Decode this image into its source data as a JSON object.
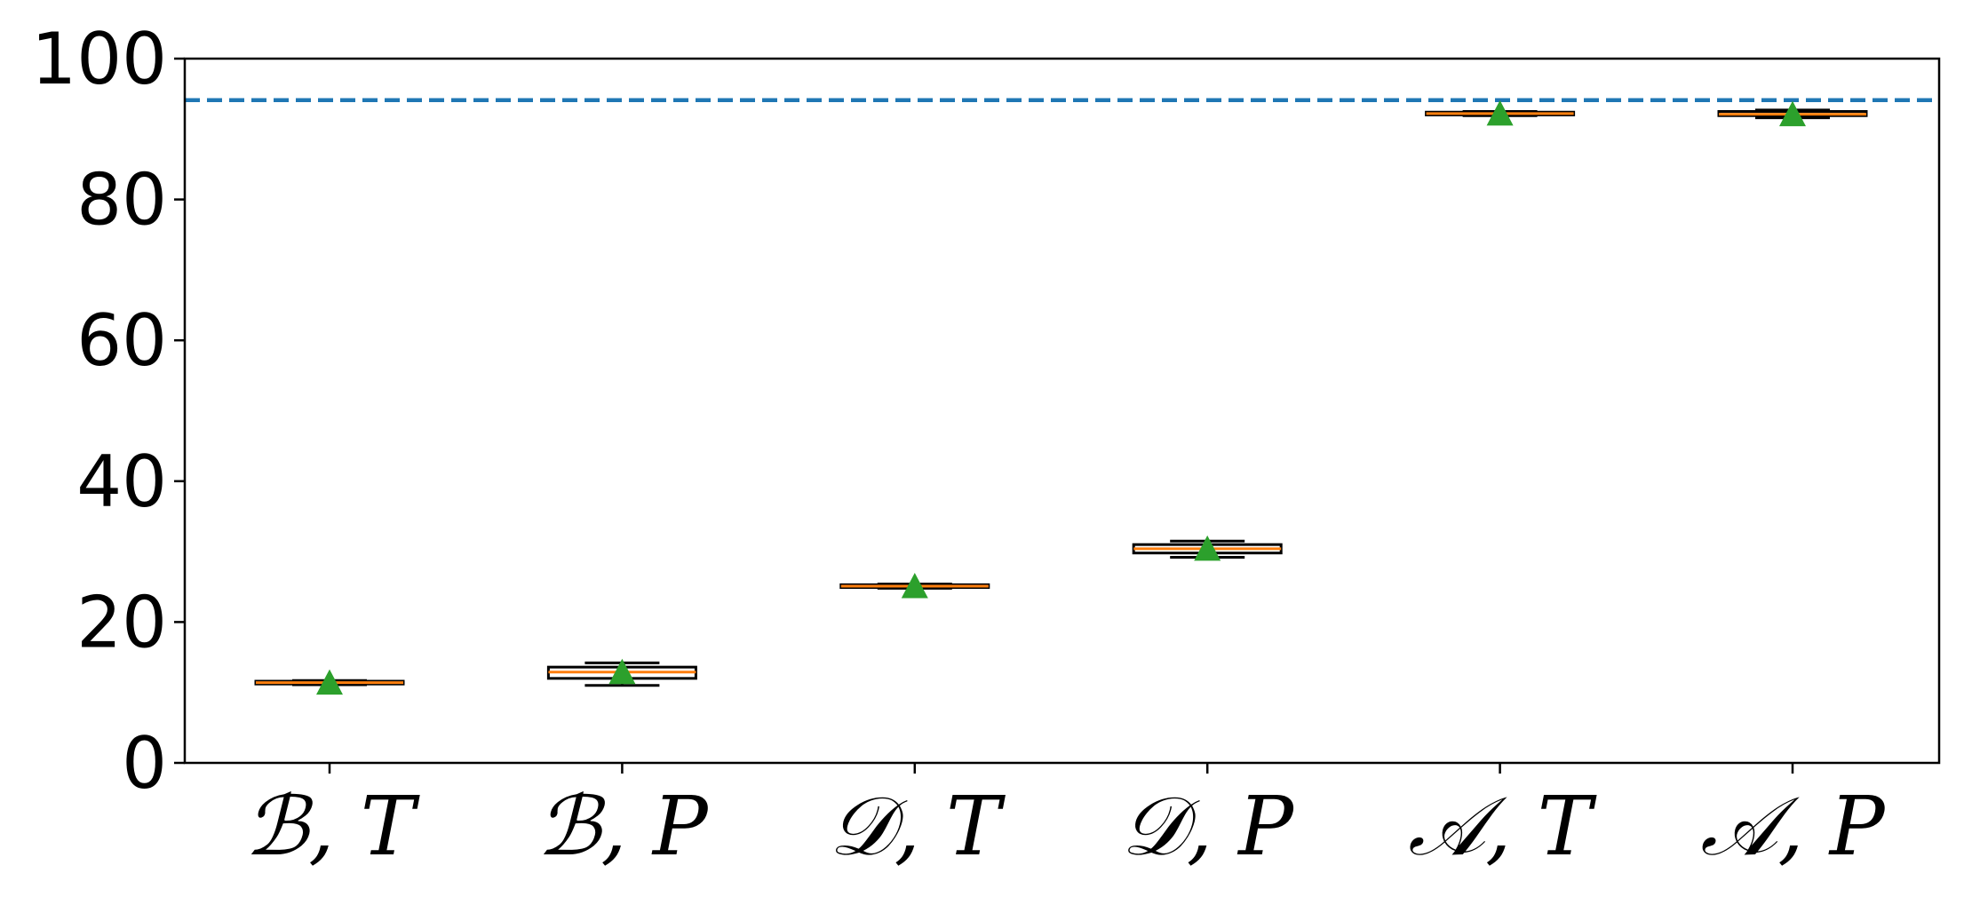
{
  "chart_data": {
    "type": "box",
    "title": "",
    "xlabel": "",
    "ylabel": "",
    "ylim": [
      0,
      100
    ],
    "yticks": [
      0,
      20,
      40,
      60,
      80,
      100
    ],
    "grid": false,
    "legend": "none",
    "categories": [
      "ℬ, T",
      "ℬ, P",
      "𝒟, T",
      "𝒟, P",
      "𝒜, T",
      "𝒜, P"
    ],
    "boxes": [
      {
        "whisker_low": 11.1,
        "q1": 11.2,
        "median": 11.4,
        "q3": 11.6,
        "whisker_high": 11.7,
        "mean": 11.4
      },
      {
        "whisker_low": 11.0,
        "q1": 12.0,
        "median": 12.9,
        "q3": 13.6,
        "whisker_high": 14.2,
        "mean": 12.9
      },
      {
        "whisker_low": 24.8,
        "q1": 24.9,
        "median": 25.1,
        "q3": 25.3,
        "whisker_high": 25.4,
        "mean": 25.1
      },
      {
        "whisker_low": 29.2,
        "q1": 29.8,
        "median": 30.4,
        "q3": 31.0,
        "whisker_high": 31.5,
        "mean": 30.4
      },
      {
        "whisker_low": 91.9,
        "q1": 92.0,
        "median": 92.2,
        "q3": 92.4,
        "whisker_high": 92.5,
        "mean": 92.2
      },
      {
        "whisker_low": 91.6,
        "q1": 91.9,
        "median": 92.1,
        "q3": 92.5,
        "whisker_high": 92.7,
        "mean": 92.1
      }
    ],
    "reference_line": {
      "y": 94.1,
      "style": "dashed",
      "color": "#1f77b4"
    },
    "colors": {
      "box": "#000000",
      "median": "#ff7f0e",
      "mean_marker": "#2ca02c",
      "axis": "#000000"
    }
  }
}
